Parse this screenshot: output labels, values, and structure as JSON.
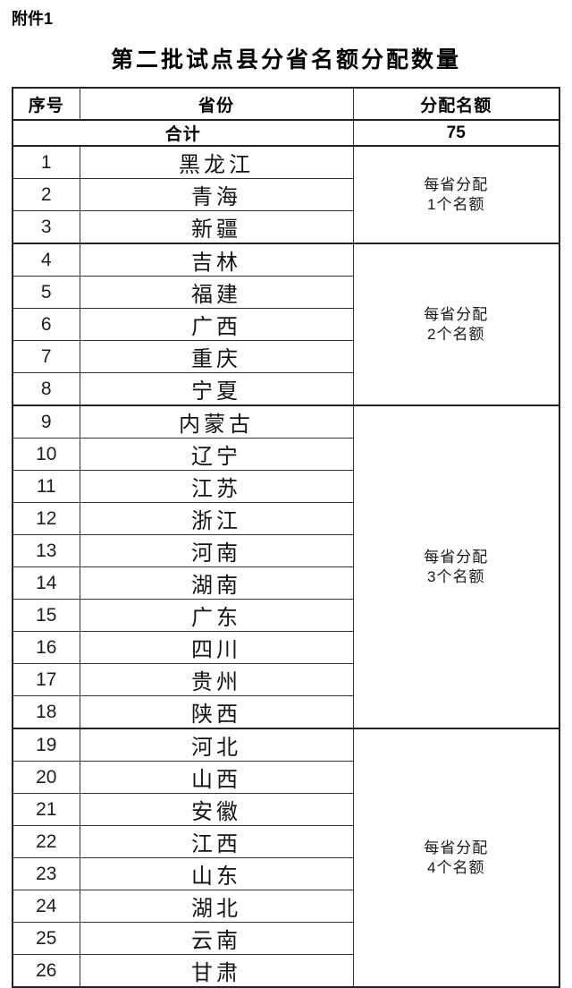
{
  "page": {
    "attachment_label": "附件1",
    "title": "第二批试点县分省名额分配数量"
  },
  "table": {
    "columns": [
      "序号",
      "省份",
      "分配名额"
    ],
    "total": {
      "label": "合计",
      "value": "75"
    },
    "groups": [
      {
        "quota_note": [
          "每省分配",
          "1个名额"
        ],
        "rows": [
          {
            "no": "1",
            "province": "黑龙江"
          },
          {
            "no": "2",
            "province": "青海"
          },
          {
            "no": "3",
            "province": "新疆"
          }
        ]
      },
      {
        "quota_note": [
          "每省分配",
          "2个名额"
        ],
        "rows": [
          {
            "no": "4",
            "province": "吉林"
          },
          {
            "no": "5",
            "province": "福建"
          },
          {
            "no": "6",
            "province": "广西"
          },
          {
            "no": "7",
            "province": "重庆"
          },
          {
            "no": "8",
            "province": "宁夏"
          }
        ]
      },
      {
        "quota_note": [
          "每省分配",
          "3个名额"
        ],
        "rows": [
          {
            "no": "9",
            "province": "内蒙古"
          },
          {
            "no": "10",
            "province": "辽宁"
          },
          {
            "no": "11",
            "province": "江苏"
          },
          {
            "no": "12",
            "province": "浙江"
          },
          {
            "no": "13",
            "province": "河南"
          },
          {
            "no": "14",
            "province": "湖南"
          },
          {
            "no": "15",
            "province": "广东"
          },
          {
            "no": "16",
            "province": "四川"
          },
          {
            "no": "17",
            "province": "贵州"
          },
          {
            "no": "18",
            "province": "陕西"
          }
        ]
      },
      {
        "quota_note": [
          "每省分配",
          "4个名额"
        ],
        "rows": [
          {
            "no": "19",
            "province": "河北"
          },
          {
            "no": "20",
            "province": "山西"
          },
          {
            "no": "21",
            "province": "安徽"
          },
          {
            "no": "22",
            "province": "江西"
          },
          {
            "no": "23",
            "province": "山东"
          },
          {
            "no": "24",
            "province": "湖北"
          },
          {
            "no": "25",
            "province": "云南"
          },
          {
            "no": "26",
            "province": "甘肃"
          }
        ]
      }
    ]
  },
  "colors": {
    "text": "#111111",
    "border_outer": "#222222",
    "border_inner": "#333333",
    "background": "#ffffff"
  }
}
